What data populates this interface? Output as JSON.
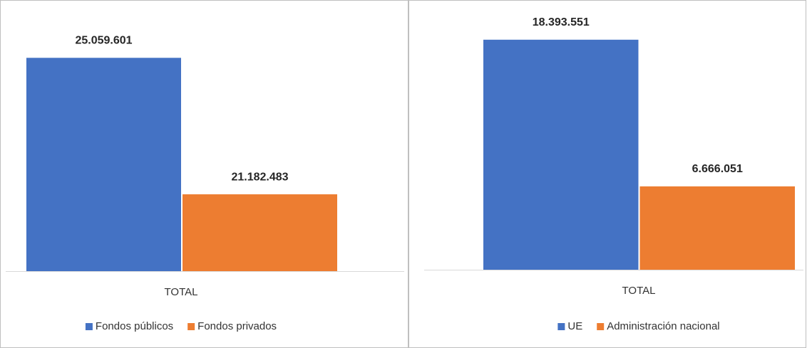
{
  "chart_data": [
    {
      "type": "bar",
      "categories": [
        "TOTAL"
      ],
      "series": [
        {
          "name": "Fondos públicos",
          "color": "#4472c4",
          "values": [
            25059601
          ],
          "value_labels": [
            "25.059.601"
          ]
        },
        {
          "name": "Fondos privados",
          "color": "#ed7d31",
          "values": [
            21182483
          ],
          "value_labels": [
            "21.182.483"
          ]
        }
      ],
      "ylim": [
        19000000,
        26500000
      ]
    },
    {
      "type": "bar",
      "categories": [
        "TOTAL"
      ],
      "series": [
        {
          "name": "UE",
          "color": "#4472c4",
          "values": [
            18393551
          ],
          "value_labels": [
            "18.393.551"
          ]
        },
        {
          "name": "Administración nacional",
          "color": "#ed7d31",
          "values": [
            6666051
          ],
          "value_labels": [
            "6.666.051"
          ]
        }
      ],
      "ylim": [
        0,
        21000000
      ]
    }
  ]
}
